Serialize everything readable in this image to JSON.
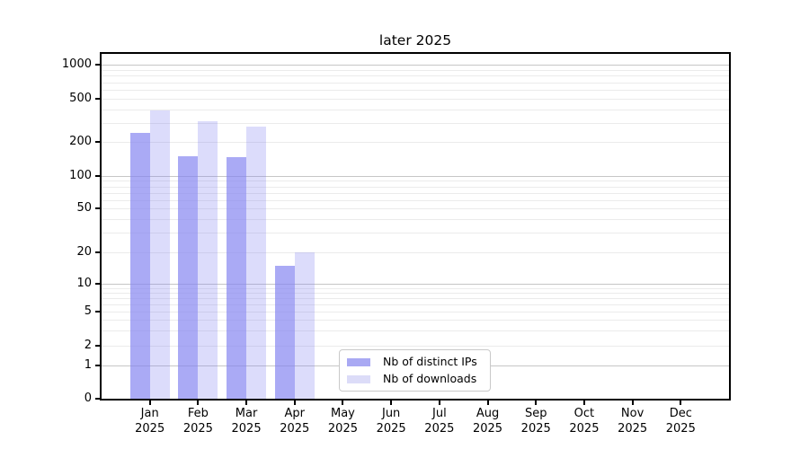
{
  "chart_data": {
    "type": "bar",
    "title": "later 2025",
    "categories": [
      "Jan",
      "Feb",
      "Mar",
      "Apr",
      "May",
      "Jun",
      "Jul",
      "Aug",
      "Sep",
      "Oct",
      "Nov",
      "Dec"
    ],
    "year": "2025",
    "series": [
      {
        "name": "Nb of distinct IPs",
        "color": "#a9a9f3",
        "fill": "rgba(130,130,240,0.68)",
        "values": [
          240,
          150,
          148,
          15,
          0,
          0,
          0,
          0,
          0,
          0,
          0,
          0
        ]
      },
      {
        "name": "Nb of downloads",
        "color": "#dcdcf8",
        "fill": "rgba(130,130,240,0.28)",
        "values": [
          390,
          310,
          275,
          20,
          0,
          0,
          0,
          0,
          0,
          0,
          0,
          0
        ]
      }
    ],
    "yscale": "symlog",
    "yticks": [
      0,
      1,
      2,
      5,
      10,
      20,
      50,
      100,
      200,
      500,
      1000
    ],
    "ylim": [
      0,
      1200
    ],
    "xlabel": "",
    "ylabel": "",
    "grid": true,
    "legend_position": "lower center"
  }
}
